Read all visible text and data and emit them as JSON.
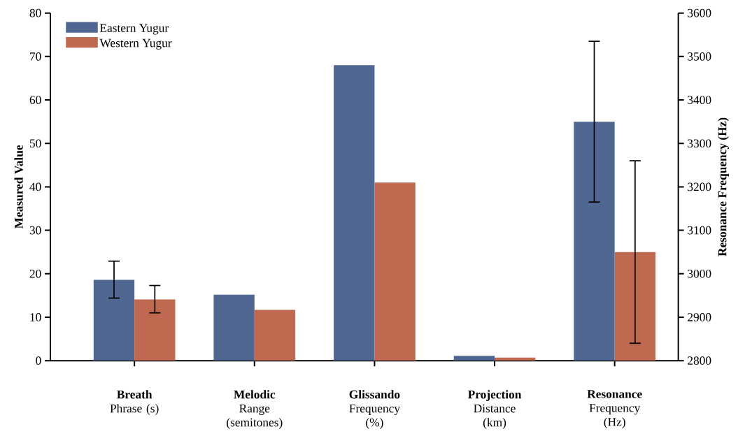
{
  "chart_data": {
    "type": "bar",
    "ylabel": "Measured Value",
    "y2label": "Resonance Frequency (Hz)",
    "categories": [
      "**Breath** Phrase (s)",
      "**Melodic** Range (semitones)",
      "**Glissando** Frequency (%)",
      "**Projection** Distance (km)",
      "**Resonance** Frequency (Hz)"
    ],
    "series": [
      {
        "name": "Eastern Yugur",
        "color": "#506891",
        "values": [
          18.6,
          15.2,
          68,
          1.1,
          null
        ],
        "errors": [
          [
            14.4,
            22.9
          ],
          null,
          null,
          null,
          null
        ]
      },
      {
        "name": "Western Yugur",
        "color": "#bf6a50",
        "values": [
          14.1,
          11.7,
          41,
          0.7,
          null
        ],
        "errors": [
          [
            11.0,
            17.3
          ],
          null,
          null,
          null,
          null
        ]
      },
      {
        "color": "#506891",
        "axis": "y2",
        "values": [
          null,
          null,
          null,
          null,
          3350
        ],
        "errors": [
          null,
          null,
          null,
          null,
          [
            3165,
            3535
          ]
        ]
      },
      {
        "color": "#bf6a50",
        "axis": "y2",
        "values": [
          null,
          null,
          null,
          null,
          3050
        ],
        "errors": [
          null,
          null,
          null,
          null,
          [
            2840,
            3260
          ]
        ]
      }
    ],
    "ylim": [
      0,
      80
    ],
    "yticks": [
      0,
      10,
      20,
      30,
      40,
      50,
      60,
      70,
      80
    ],
    "y2lim": [
      2800,
      3600
    ],
    "y2ticks": [
      2800,
      2900,
      3000,
      3100,
      3200,
      3300,
      3400,
      3500,
      3600
    ],
    "legend": "top left"
  }
}
